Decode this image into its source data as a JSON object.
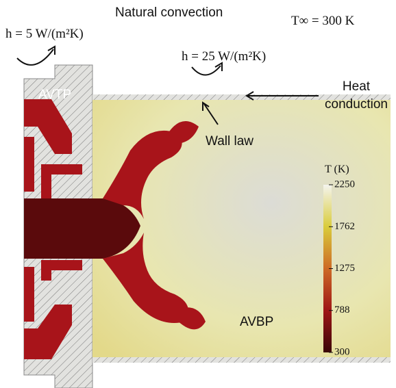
{
  "figure": {
    "top_label": "Natural convection",
    "h_outer": "h = 5 W/(m²K)",
    "t_inf": "T∞ = 300 K",
    "h_inner": "h = 25 W/(m²K)",
    "solid_label": "AVTP",
    "heat_conduction": [
      "Heat",
      "conduction"
    ],
    "wall_law": "Wall law",
    "fluid_label": "AVBP"
  },
  "colorbar": {
    "title": "T (K)",
    "lim": [
      300,
      2250
    ],
    "ticks": [
      300,
      788,
      1275,
      1762,
      2250
    ]
  }
}
